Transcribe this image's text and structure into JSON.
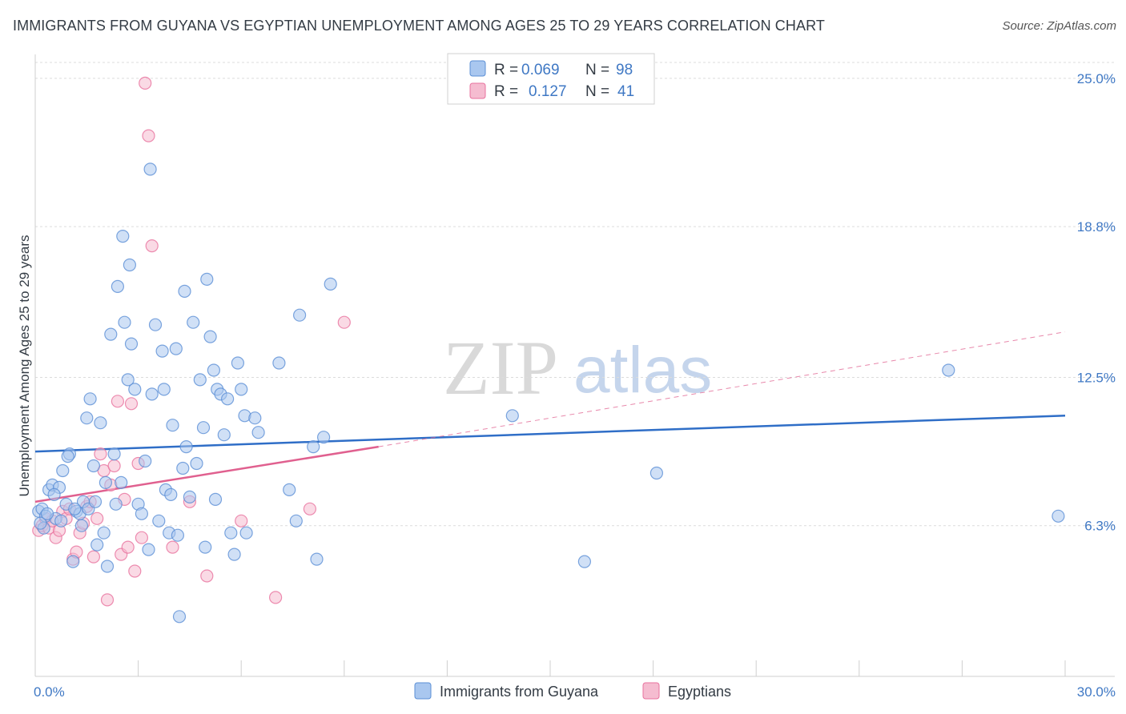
{
  "title": "IMMIGRANTS FROM GUYANA VS EGYPTIAN UNEMPLOYMENT AMONG AGES 25 TO 29 YEARS CORRELATION CHART",
  "source": "Source: ZipAtlas.com",
  "watermark": {
    "zip": "ZIP",
    "atlas": "atlas"
  },
  "colors": {
    "blue": "#5b8fd6",
    "blue_fill": "#a9c7ef",
    "pink": "#e8729e",
    "pink_fill": "#f5bcd0",
    "tick_text": "#3f78c4"
  },
  "legend": {
    "rows": [
      {
        "r_label": "R =",
        "r_value": "0.069",
        "n_label": "N =",
        "n_value": "98"
      },
      {
        "r_label": "R =",
        "r_value": "0.127",
        "n_label": "N =",
        "n_value": "41"
      }
    ]
  },
  "bottom_legend": [
    "Immigrants from Guyana",
    "Egyptians"
  ],
  "chart_data": {
    "type": "scatter",
    "xlabel": "",
    "ylabel": "Unemployment Among Ages 25 to 29 years",
    "xlim": [
      0,
      30
    ],
    "ylim": [
      0,
      26
    ],
    "x_tick_labels": [
      {
        "value": 0,
        "label": "0.0%"
      },
      {
        "value": 30,
        "label": "30.0%"
      }
    ],
    "y_tick_labels": [
      {
        "value": 6.3,
        "label": "6.3%"
      },
      {
        "value": 12.5,
        "label": "12.5%"
      },
      {
        "value": 18.8,
        "label": "18.8%"
      },
      {
        "value": 25.0,
        "label": "25.0%"
      }
    ],
    "grid": "horizontal dashed",
    "legend_position": "top-center",
    "series": [
      {
        "name": "Immigrants from Guyana",
        "r": 0.069,
        "n": 98,
        "trend": {
          "x": [
            0,
            30
          ],
          "y": [
            9.4,
            10.9
          ]
        },
        "points": [
          [
            0.1,
            6.9
          ],
          [
            0.2,
            7.0
          ],
          [
            0.3,
            6.7
          ],
          [
            0.25,
            6.2
          ],
          [
            0.4,
            7.8
          ],
          [
            0.5,
            8.0
          ],
          [
            0.6,
            6.6
          ],
          [
            0.7,
            7.9
          ],
          [
            0.8,
            8.6
          ],
          [
            0.9,
            7.2
          ],
          [
            1.0,
            9.3
          ],
          [
            1.1,
            4.8
          ],
          [
            1.2,
            6.9
          ],
          [
            1.3,
            6.8
          ],
          [
            1.4,
            7.3
          ],
          [
            1.5,
            10.8
          ],
          [
            1.6,
            11.6
          ],
          [
            1.7,
            8.8
          ],
          [
            1.8,
            5.5
          ],
          [
            1.9,
            10.6
          ],
          [
            2.0,
            6.0
          ],
          [
            2.1,
            4.6
          ],
          [
            2.2,
            14.3
          ],
          [
            2.3,
            9.3
          ],
          [
            2.4,
            16.3
          ],
          [
            2.5,
            8.1
          ],
          [
            2.6,
            14.8
          ],
          [
            2.7,
            12.4
          ],
          [
            2.8,
            13.9
          ],
          [
            2.9,
            12.0
          ],
          [
            3.0,
            7.2
          ],
          [
            3.1,
            6.8
          ],
          [
            3.2,
            9.0
          ],
          [
            3.3,
            5.3
          ],
          [
            3.4,
            11.8
          ],
          [
            3.5,
            14.7
          ],
          [
            3.6,
            6.5
          ],
          [
            3.7,
            13.6
          ],
          [
            3.8,
            7.8
          ],
          [
            3.9,
            6.0
          ],
          [
            4.0,
            10.5
          ],
          [
            4.1,
            13.7
          ],
          [
            4.2,
            2.5
          ],
          [
            4.3,
            8.7
          ],
          [
            4.4,
            9.6
          ],
          [
            4.5,
            7.5
          ],
          [
            4.6,
            14.8
          ],
          [
            4.7,
            8.9
          ],
          [
            4.8,
            12.4
          ],
          [
            4.9,
            10.4
          ],
          [
            5.0,
            16.6
          ],
          [
            5.1,
            14.2
          ],
          [
            5.2,
            12.8
          ],
          [
            5.3,
            12.0
          ],
          [
            5.4,
            11.8
          ],
          [
            5.5,
            10.1
          ],
          [
            5.6,
            11.6
          ],
          [
            5.7,
            6.0
          ],
          [
            5.8,
            5.1
          ],
          [
            5.9,
            13.1
          ],
          [
            6.0,
            12.0
          ],
          [
            6.1,
            10.9
          ],
          [
            6.4,
            10.8
          ],
          [
            6.5,
            10.2
          ],
          [
            7.1,
            13.1
          ],
          [
            7.4,
            7.8
          ],
          [
            7.6,
            6.5
          ],
          [
            7.7,
            15.1
          ],
          [
            8.1,
            9.6
          ],
          [
            8.2,
            4.9
          ],
          [
            8.4,
            10.0
          ],
          [
            8.6,
            16.4
          ],
          [
            13.9,
            10.9
          ],
          [
            16.0,
            4.8
          ],
          [
            18.1,
            8.5
          ],
          [
            26.6,
            12.8
          ],
          [
            29.8,
            6.7
          ],
          [
            0.15,
            6.4
          ],
          [
            0.35,
            6.8
          ],
          [
            0.55,
            7.6
          ],
          [
            0.75,
            6.5
          ],
          [
            0.95,
            9.2
          ],
          [
            1.15,
            7.0
          ],
          [
            1.35,
            6.3
          ],
          [
            1.55,
            7.0
          ],
          [
            1.75,
            7.3
          ],
          [
            2.05,
            8.1
          ],
          [
            2.35,
            7.2
          ],
          [
            2.55,
            18.4
          ],
          [
            2.75,
            17.2
          ],
          [
            3.35,
            21.2
          ],
          [
            3.75,
            12.0
          ],
          [
            3.95,
            7.6
          ],
          [
            4.15,
            5.9
          ],
          [
            4.35,
            16.1
          ],
          [
            4.95,
            5.4
          ],
          [
            5.25,
            7.4
          ],
          [
            6.15,
            6.0
          ]
        ]
      },
      {
        "name": "Egyptians",
        "r": 0.127,
        "n": 41,
        "trend": {
          "x": [
            0,
            10
          ],
          "y": [
            7.3,
            9.6
          ]
        },
        "trend_dashed": {
          "x": [
            10,
            30
          ],
          "y": [
            9.6,
            14.4
          ]
        },
        "points": [
          [
            0.1,
            6.1
          ],
          [
            0.2,
            6.3
          ],
          [
            0.3,
            6.6
          ],
          [
            0.4,
            6.2
          ],
          [
            0.5,
            6.5
          ],
          [
            0.6,
            5.8
          ],
          [
            0.7,
            6.1
          ],
          [
            0.8,
            6.9
          ],
          [
            0.9,
            6.6
          ],
          [
            1.0,
            7.0
          ],
          [
            1.1,
            4.9
          ],
          [
            1.2,
            5.2
          ],
          [
            1.3,
            6.0
          ],
          [
            1.4,
            6.4
          ],
          [
            1.5,
            7.1
          ],
          [
            1.6,
            7.3
          ],
          [
            1.7,
            5.0
          ],
          [
            1.8,
            6.6
          ],
          [
            1.9,
            9.3
          ],
          [
            2.0,
            8.6
          ],
          [
            2.1,
            3.2
          ],
          [
            2.2,
            8.0
          ],
          [
            2.3,
            8.8
          ],
          [
            2.4,
            11.5
          ],
          [
            2.5,
            5.1
          ],
          [
            2.6,
            7.4
          ],
          [
            2.7,
            5.4
          ],
          [
            2.8,
            11.4
          ],
          [
            2.9,
            4.4
          ],
          [
            3.0,
            8.9
          ],
          [
            3.1,
            5.8
          ],
          [
            3.2,
            24.8
          ],
          [
            3.3,
            22.6
          ],
          [
            3.4,
            18.0
          ],
          [
            4.0,
            5.4
          ],
          [
            4.5,
            7.3
          ],
          [
            5.0,
            4.2
          ],
          [
            6.0,
            6.5
          ],
          [
            7.0,
            3.3
          ],
          [
            8.0,
            7.0
          ],
          [
            9.0,
            14.8
          ]
        ]
      }
    ]
  }
}
